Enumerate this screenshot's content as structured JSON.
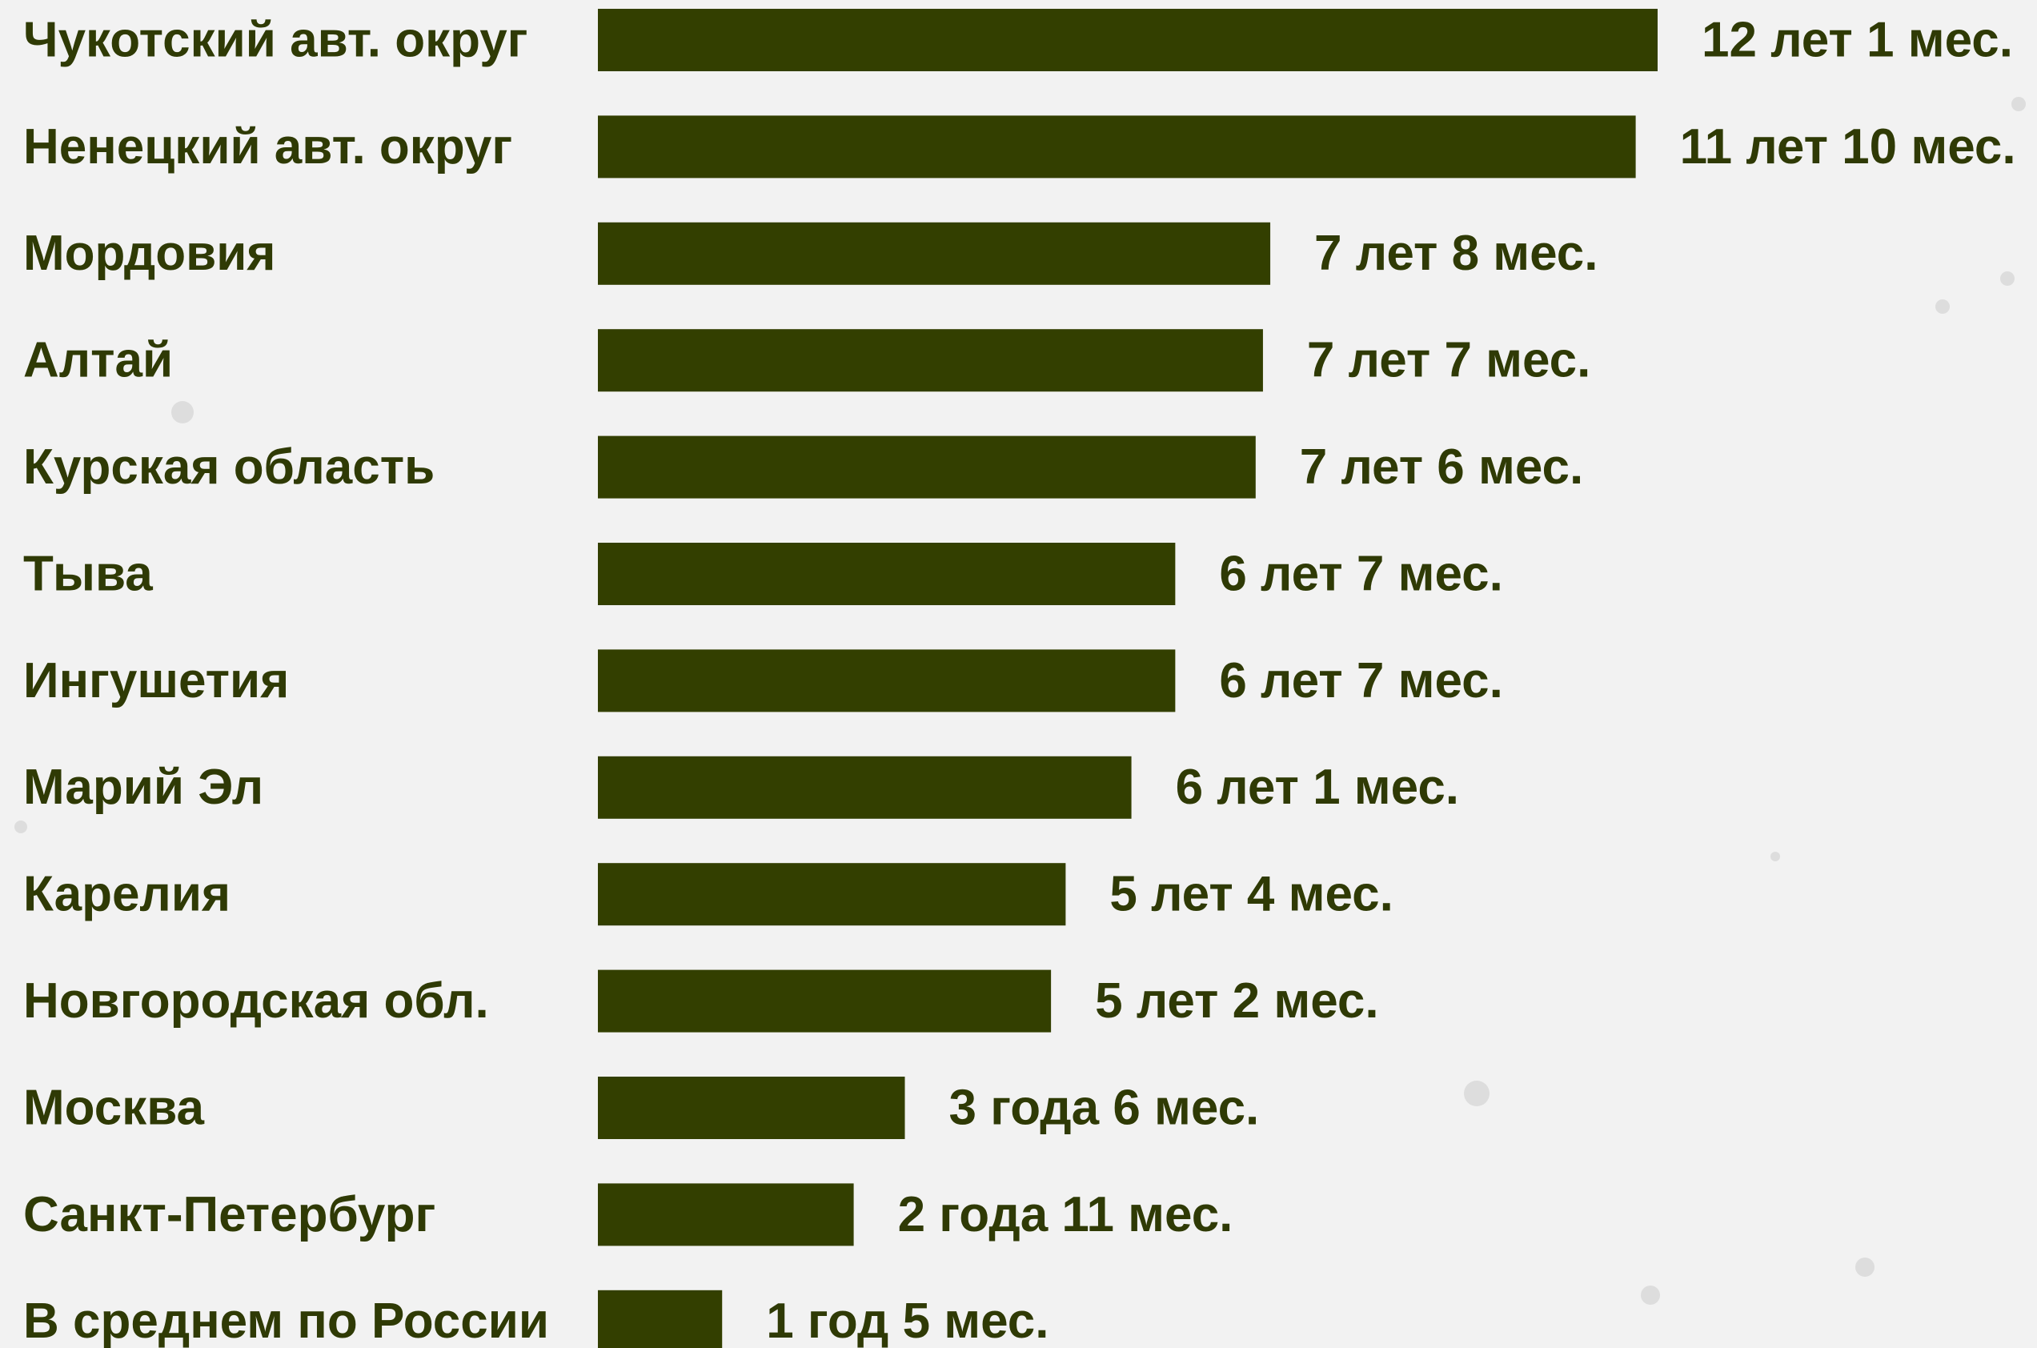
{
  "chart_data": {
    "type": "hbar",
    "categories": [
      "Чукотский авт. округ",
      "Ненецкий авт. округ",
      "Мордовия",
      "Алтай",
      "Курская область",
      "Тыва",
      "Ингушетия",
      "Марий Эл",
      "Карелия",
      "Новгородская обл.",
      "Москва",
      "Санкт-Петербург",
      "В среднем по России"
    ],
    "values": [
      145,
      142,
      92,
      91,
      90,
      79,
      79,
      73,
      64,
      62,
      42,
      35,
      17
    ],
    "value_labels": [
      "12 лет 1 мес.",
      "11 лет 10 мес.",
      "7 лет 8 мес.",
      "7 лет 7 мес.",
      "7 лет 6 мес.",
      "6 лет 7 мес.",
      "6 лет 7 мес.",
      "6 лет 1 мес.",
      "5 лет 4 мес.",
      "5 лет 2 мес.",
      "3 года 6 мес.",
      "2 года 11 мес.",
      "1 год 5 мес."
    ],
    "color": "#333f00",
    "xlim": [
      0,
      145
    ]
  }
}
